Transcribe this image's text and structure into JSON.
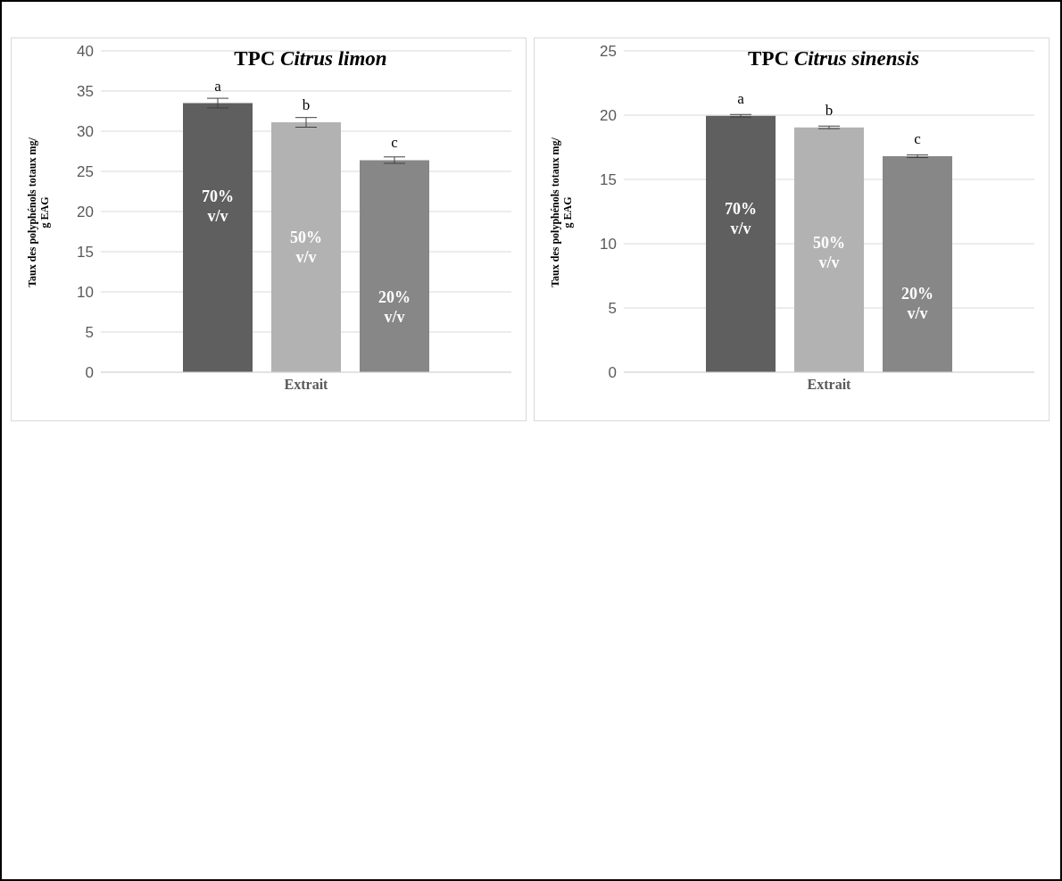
{
  "chart_data": [
    {
      "type": "bar",
      "title": "TPC Citrus limon",
      "ylabel": "Taux des polyphénols totaux mg/ g EAG",
      "categories": [
        "Extrait"
      ],
      "series": [
        {
          "name": "70% v/v",
          "color": "#5f5f5f",
          "values": [
            33.5
          ],
          "errors": [
            0.6
          ]
        },
        {
          "name": "50% v/v",
          "color": "#b2b2b2",
          "values": [
            31.1
          ],
          "errors": [
            0.6
          ]
        },
        {
          "name": "20% v/v",
          "color": "#878787",
          "values": [
            26.4
          ],
          "errors": [
            0.4
          ]
        }
      ],
      "ylim": [
        0,
        40
      ],
      "yticks": [
        0,
        5,
        10,
        15,
        20,
        25,
        30,
        35,
        40
      ],
      "grid": "y",
      "legend": false,
      "annotations": [
        "a",
        "b",
        "c"
      ]
    },
    {
      "type": "bar",
      "title": "TPC Citrus sinensis",
      "ylabel": "Taux des polyphénols totaux mg/ g EAG",
      "categories": [
        "Extrait"
      ],
      "series": [
        {
          "name": "70% v/v",
          "color": "#5f5f5f",
          "values": [
            19.95
          ],
          "errors": [
            0.1
          ]
        },
        {
          "name": "50% v/v",
          "color": "#b2b2b2",
          "values": [
            19.05
          ],
          "errors": [
            0.1
          ]
        },
        {
          "name": "20% v/v",
          "color": "#878787",
          "values": [
            16.8
          ],
          "errors": [
            0.1
          ]
        }
      ],
      "ylim": [
        0,
        25
      ],
      "yticks": [
        0,
        5,
        10,
        15,
        20,
        25
      ],
      "grid": "y",
      "legend": false,
      "annotations": [
        "a",
        "b",
        "c"
      ]
    }
  ]
}
